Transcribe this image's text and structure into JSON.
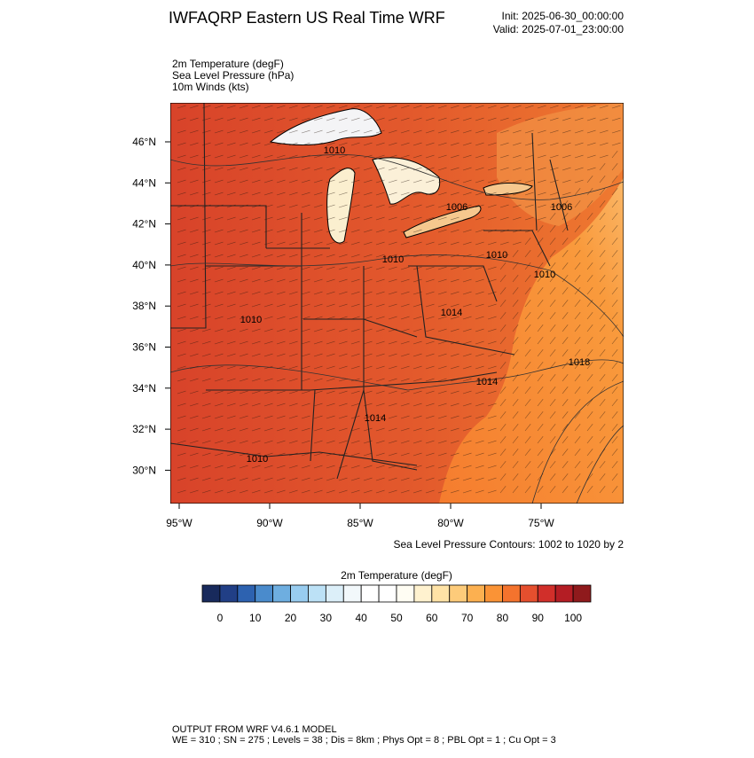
{
  "header": {
    "title": "IWFAQRP Eastern US Real Time WRF",
    "init": "Init: 2025-06-30_00:00:00",
    "valid": "Valid: 2025-07-01_23:00:00"
  },
  "fields": [
    "2m Temperature   (degF)",
    "Sea Level Pressure   (hPa)",
    "10m Winds   (kts)"
  ],
  "map": {
    "lat_ticks": [
      {
        "value": 46,
        "label": "46°N"
      },
      {
        "value": 44,
        "label": "44°N"
      },
      {
        "value": 42,
        "label": "42°N"
      },
      {
        "value": 40,
        "label": "40°N"
      },
      {
        "value": 38,
        "label": "38°N"
      },
      {
        "value": 36,
        "label": "36°N"
      },
      {
        "value": 34,
        "label": "34°N"
      },
      {
        "value": 32,
        "label": "32°N"
      },
      {
        "value": 30,
        "label": "30°N"
      }
    ],
    "lon_ticks": [
      {
        "value": -95,
        "label": "95°W"
      },
      {
        "value": -90,
        "label": "90°W"
      },
      {
        "value": -85,
        "label": "85°W"
      },
      {
        "value": -80,
        "label": "80°W"
      },
      {
        "value": -75,
        "label": "75°W"
      }
    ],
    "contour_labels": [
      1010,
      1006,
      1006,
      1010,
      1010,
      1010,
      1010,
      1014,
      1018,
      1014,
      1014,
      1010
    ],
    "contour_note": "Sea Level Pressure Contours: 1002 to 1020 by 2"
  },
  "colorbar": {
    "title": "2m Temperature  (degF)",
    "lim": [
      -5,
      105
    ],
    "colors": [
      "#182a5c",
      "#213f86",
      "#2d62b0",
      "#4a8bcc",
      "#6eaee0",
      "#98ccef",
      "#bce1f6",
      "#dceff9",
      "#f2f8fb",
      "#ffffff",
      "#ffffff",
      "#fffdf3",
      "#fff2cf",
      "#ffe3a6",
      "#fdcb7a",
      "#fcb050",
      "#fa9336",
      "#f4732d",
      "#e54f2e",
      "#d12f2a",
      "#b41d24",
      "#8f1a1c"
    ],
    "ticks": [
      0,
      10,
      20,
      30,
      40,
      50,
      60,
      70,
      80,
      90,
      100
    ]
  },
  "footer": {
    "line1": "OUTPUT FROM WRF V4.6.1 MODEL",
    "line2": "WE = 310 ; SN = 275 ; Levels = 38 ; Dis = 8km ; Phys Opt = 8 ; PBL Opt = 1 ; Cu Opt = 3"
  }
}
